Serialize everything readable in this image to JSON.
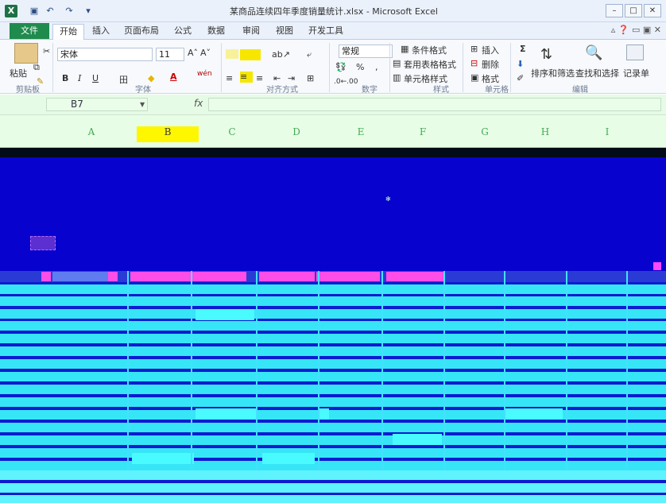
{
  "window": {
    "title": "某商品连续四年季度销量统计.xlsx - Microsoft Excel",
    "app_icon_label": "X",
    "controls": {
      "minimize": "–",
      "restore": "□",
      "close": "✕"
    }
  },
  "tabs": {
    "file": "文件",
    "items": [
      "开始",
      "插入",
      "页面布局",
      "公式",
      "数据",
      "审阅",
      "视图",
      "开发工具"
    ],
    "active": "开始"
  },
  "ribbon": {
    "paste": "粘贴",
    "font_name": "宋体",
    "font_size": "11",
    "bold": "B",
    "italic": "I",
    "underline": "U",
    "font_color_letter": "A",
    "wen": "wén",
    "number_format": "常规",
    "percent": "%",
    "comma": ",",
    "conditional_format": "条件格式",
    "table_format": "套用表格格式",
    "cell_styles": "单元格样式",
    "insert": "插入",
    "delete": "删除",
    "format": "格式",
    "sum_symbol": "Σ",
    "sort_filter": "排序和筛选",
    "find_select": "查找和选择",
    "records": "记录单",
    "groups": [
      "剪贴板",
      "字体",
      "对齐方式",
      "数字",
      "样式",
      "单元格",
      "编辑"
    ]
  },
  "formula_bar": {
    "name_box": "B7",
    "fx": "fx",
    "content": ""
  },
  "columns": {
    "headers": [
      "A",
      "B",
      "C",
      "D",
      "E",
      "F",
      "G",
      "H",
      "I"
    ],
    "selected": "B"
  },
  "colors": {
    "banner": "#0802ce",
    "data_row": "#36e6f7",
    "selected_column": "#fff700",
    "file_tab": "#1f8b4c"
  }
}
